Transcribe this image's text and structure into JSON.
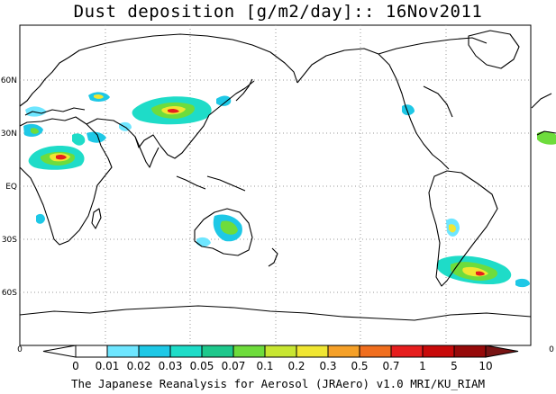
{
  "title": "Dust deposition [g/m2/day]:: 16Nov2011",
  "credit": "The Japanese Reanalysis for Aerosol (JRAero) v1.0 MRI/KU_RIAM",
  "lat_labels": [
    "60N",
    "30N",
    "EQ",
    "30S",
    "60S"
  ],
  "lon_labels": [
    "0",
    "0"
  ],
  "colorbar": {
    "labels": [
      "0",
      "0.01",
      "0.02",
      "0.03",
      "0.05",
      "0.07",
      "0.1",
      "0.2",
      "0.3",
      "0.5",
      "0.7",
      "1",
      "5",
      "10"
    ],
    "colors": [
      "#ffffff",
      "#ffffff",
      "#6ee6ff",
      "#1ec8e6",
      "#1edcc8",
      "#1ec88c",
      "#6edc3c",
      "#c8e632",
      "#f0e632",
      "#f5a028",
      "#f06e1e",
      "#e61e1e",
      "#c80a0a",
      "#960a0a",
      "#781414"
    ]
  },
  "colors": {
    "grid": "#9a9a9a",
    "coast": "#000000"
  }
}
